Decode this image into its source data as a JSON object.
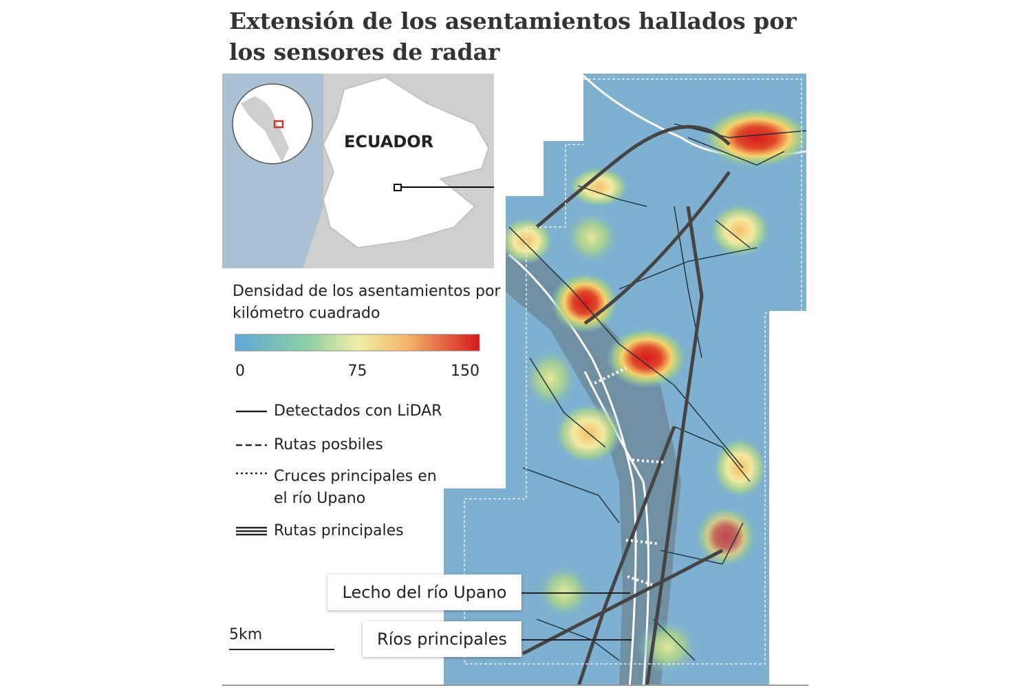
{
  "title": "Extensión de los asentamientos hallados por los sensores de radar",
  "inset": {
    "country": "ECUADOR"
  },
  "legend": {
    "title": "Densidad de los asentamientos por kilómetro cuadrado",
    "colorbar": {
      "range": [
        0,
        150
      ],
      "ticks": [
        0,
        75,
        150
      ]
    },
    "items": [
      "Detectados con LiDAR",
      "Rutas posbiles",
      "Cruces principales en el río Upano",
      "Rutas principales"
    ]
  },
  "callouts": [
    "Lecho del río Upano",
    "Ríos principales"
  ],
  "scale": "5km"
}
